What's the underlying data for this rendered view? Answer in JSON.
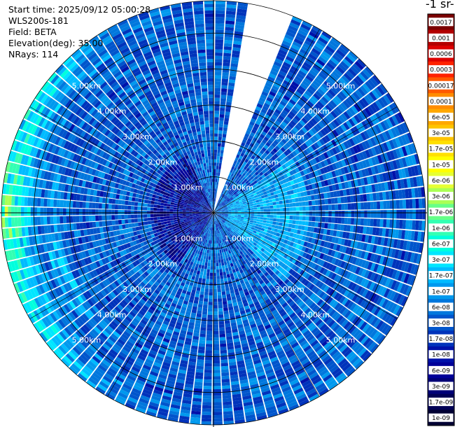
{
  "info": {
    "start_time": "Start time: 2025/09/12 05:00:28",
    "instrument": "WLS200s-181",
    "field": "Field: BETA",
    "elevation": "Elevation(deg): 35.00",
    "nrays": "NRays: 114"
  },
  "chart_data": {
    "type": "heatmap",
    "projection": "polar-ppi",
    "field": "BETA",
    "elevation_deg": 35.0,
    "n_rays": 114,
    "range_max_km": 5.9,
    "range_rings_km": [
      1.0,
      2.0,
      3.0,
      4.0,
      5.0
    ],
    "ring_labels": [
      "1.00km",
      "2.00km",
      "3.00km",
      "4.00km",
      "5.00km"
    ],
    "data_gap_azimuth_deg": [
      0,
      22
    ],
    "colorbar": {
      "title": "-1 sr-",
      "scale": "log",
      "tick_labels": [
        "0.0017",
        "0.001",
        "0.0006",
        "0.0003",
        "0.00017",
        "0.0001",
        "6e-05",
        "3e-05",
        "1.7e-05",
        "1e-05",
        "6e-06",
        "3e-06",
        "1.7e-06",
        "1e-06",
        "6e-07",
        "3e-07",
        "1.7e-07",
        "1e-07",
        "6e-08",
        "3e-08",
        "1.7e-08",
        "1e-08",
        "6e-09",
        "3e-09",
        "1.7e-09",
        "1e-09"
      ],
      "colors": [
        "#7a0000",
        "#b30000",
        "#dd0000",
        "#ff2200",
        "#ff5a00",
        "#ff8c00",
        "#ffa800",
        "#ffc400",
        "#ffe000",
        "#ffff00",
        "#e6ff33",
        "#aaff55",
        "#66ff88",
        "#33ffb3",
        "#00ffdd",
        "#00e6ff",
        "#00bbff",
        "#0099ee",
        "#0077dd",
        "#0055cc",
        "#0033bb",
        "#0011aa",
        "#000099",
        "#000077",
        "#000055",
        "#000033"
      ]
    },
    "regions": [
      {
        "area": "outer ring west",
        "range_km": [
          4.6,
          5.9
        ],
        "azimuth_deg": [
          210,
          330
        ],
        "value": "1e-05 to 3e-06"
      },
      {
        "area": "near-field east",
        "range_km": [
          0.5,
          2.5
        ],
        "azimuth_deg": [
          60,
          130
        ],
        "value": "1.7e-07"
      },
      {
        "area": "near-field west",
        "range_km": [
          0.2,
          1.6
        ],
        "azimuth_deg": [
          220,
          330
        ],
        "value": "1e-08 to 3e-09"
      },
      {
        "area": "general field",
        "range_km": [
          1.0,
          5.9
        ],
        "azimuth_deg": [
          22,
          360
        ],
        "value": "1e-07 to 3e-08"
      }
    ]
  }
}
